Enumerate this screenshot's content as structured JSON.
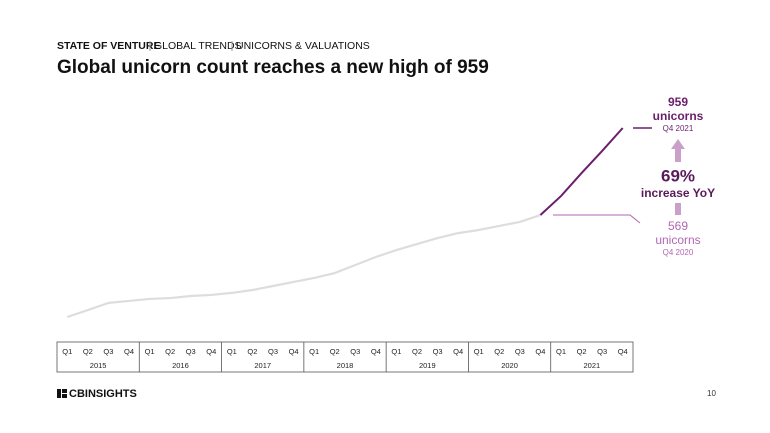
{
  "header": {
    "section": "STATE OF VENTURE",
    "topic": "GLOBAL TRENDS",
    "subtopic": "UNICORNS & VALUATIONS"
  },
  "chart_data": {
    "type": "line",
    "title": "Global unicorn count reaches a new high of 959",
    "categories": [
      "Q1",
      "Q2",
      "Q3",
      "Q4",
      "Q1",
      "Q2",
      "Q3",
      "Q4",
      "Q1",
      "Q2",
      "Q3",
      "Q4",
      "Q1",
      "Q2",
      "Q3",
      "Q4",
      "Q1",
      "Q2",
      "Q3",
      "Q4",
      "Q1",
      "Q2",
      "Q3",
      "Q4",
      "Q1",
      "Q2",
      "Q3",
      "Q4"
    ],
    "years": [
      "2015",
      "2016",
      "2017",
      "2018",
      "2019",
      "2020",
      "2021"
    ],
    "series": [
      {
        "color": "#dddddd",
        "values": [
          112,
          143,
          175,
          184,
          193,
          197,
          206,
          211,
          220,
          233,
          251,
          269,
          287,
          309,
          345,
          381,
          412,
          439,
          466,
          488,
          502,
          520,
          538,
          569,
          null,
          null,
          null,
          null
        ]
      },
      {
        "color": "#6b1f6b",
        "values": [
          null,
          null,
          null,
          null,
          null,
          null,
          null,
          null,
          null,
          null,
          null,
          null,
          null,
          null,
          null,
          null,
          null,
          null,
          null,
          null,
          null,
          null,
          null,
          569,
          654,
          757,
          856,
          959
        ]
      }
    ],
    "annotations": {
      "top_unit": "unicorns",
      "top_date": "Q4 2021",
      "change": "69%",
      "change_text": "increase YoY",
      "bottom_unit": "unicorns",
      "bottom_date": "Q4 2020"
    }
  },
  "footer": {
    "logo": "CBINSIGHTS",
    "page": "10"
  }
}
